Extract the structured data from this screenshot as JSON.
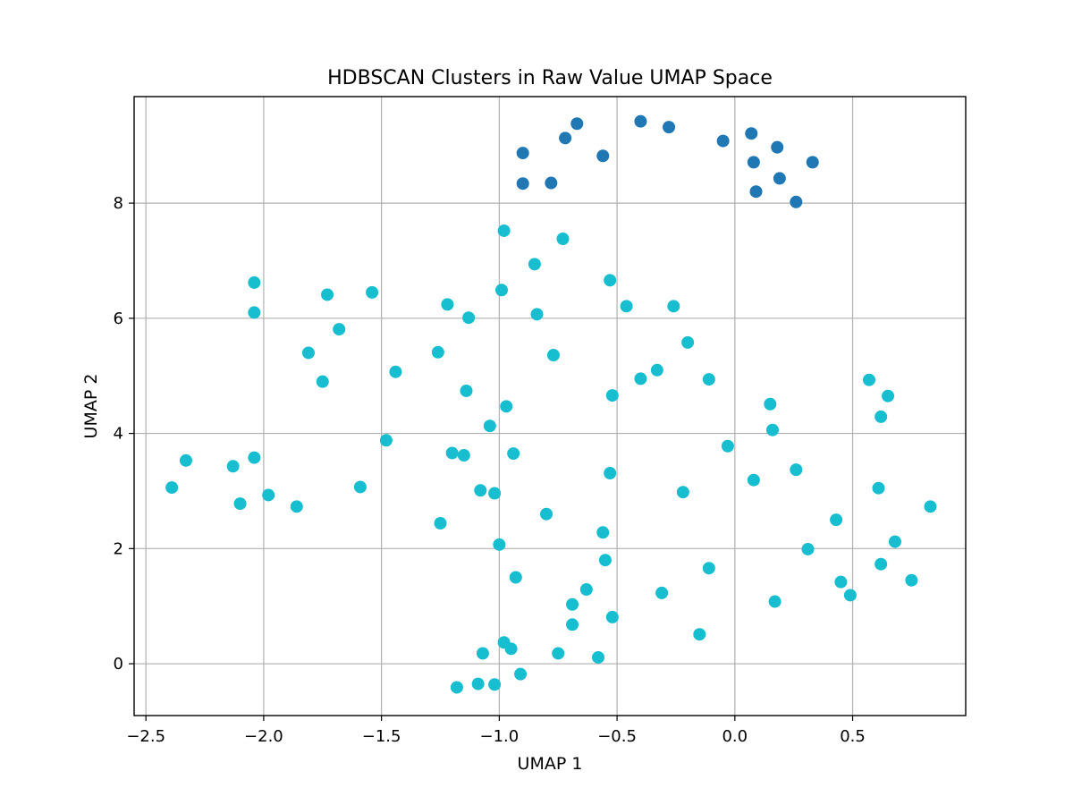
{
  "chart_data": {
    "type": "scatter",
    "title": "HDBSCAN Clusters in Raw Value UMAP Space",
    "xlabel": "UMAP 1",
    "ylabel": "UMAP 2",
    "xlim": [
      -2.55,
      0.98
    ],
    "ylim": [
      -0.9,
      9.85
    ],
    "xticks": [
      -2.5,
      -2.0,
      -1.5,
      -1.0,
      -0.5,
      0.0,
      0.5
    ],
    "xtick_labels": [
      "−2.5",
      "−2.0",
      "−1.5",
      "−1.0",
      "−0.5",
      "0.0",
      "0.5"
    ],
    "yticks": [
      0,
      2,
      4,
      6,
      8
    ],
    "ytick_labels": [
      "0",
      "2",
      "4",
      "6",
      "8"
    ],
    "grid": true,
    "series": [
      {
        "color": "#1f77b4",
        "points": [
          [
            -0.9,
            8.87
          ],
          [
            -0.9,
            8.34
          ],
          [
            -0.78,
            8.35
          ],
          [
            -0.72,
            9.13
          ],
          [
            -0.67,
            9.38
          ],
          [
            -0.56,
            8.82
          ],
          [
            -0.4,
            9.42
          ],
          [
            -0.28,
            9.32
          ],
          [
            -0.05,
            9.08
          ],
          [
            0.07,
            9.21
          ],
          [
            0.08,
            8.71
          ],
          [
            0.09,
            8.2
          ],
          [
            0.18,
            8.97
          ],
          [
            0.19,
            8.43
          ],
          [
            0.26,
            8.02
          ],
          [
            0.33,
            8.71
          ]
        ]
      },
      {
        "color": "#17becf",
        "points": [
          [
            -2.39,
            3.06
          ],
          [
            -2.33,
            3.53
          ],
          [
            -2.13,
            3.43
          ],
          [
            -2.1,
            2.78
          ],
          [
            -2.04,
            3.58
          ],
          [
            -2.04,
            6.1
          ],
          [
            -2.04,
            6.62
          ],
          [
            -1.98,
            2.93
          ],
          [
            -1.86,
            2.73
          ],
          [
            -1.81,
            5.4
          ],
          [
            -1.75,
            4.9
          ],
          [
            -1.73,
            6.41
          ],
          [
            -1.68,
            5.81
          ],
          [
            -1.59,
            3.07
          ],
          [
            -1.54,
            6.45
          ],
          [
            -1.48,
            3.88
          ],
          [
            -1.44,
            5.07
          ],
          [
            -1.26,
            5.41
          ],
          [
            -1.25,
            2.44
          ],
          [
            -1.22,
            6.24
          ],
          [
            -1.2,
            3.66
          ],
          [
            -1.15,
            3.62
          ],
          [
            -1.14,
            4.74
          ],
          [
            -1.13,
            6.01
          ],
          [
            -1.08,
            3.01
          ],
          [
            -1.07,
            0.18
          ],
          [
            -1.04,
            4.13
          ],
          [
            -1.02,
            2.96
          ],
          [
            -1.0,
            2.07
          ],
          [
            -0.99,
            6.49
          ],
          [
            -0.98,
            7.52
          ],
          [
            -0.98,
            0.37
          ],
          [
            -0.97,
            4.47
          ],
          [
            -0.95,
            0.26
          ],
          [
            -0.94,
            3.65
          ],
          [
            -0.93,
            1.5
          ],
          [
            -0.91,
            -0.18
          ],
          [
            -0.85,
            6.94
          ],
          [
            -0.84,
            6.07
          ],
          [
            -0.8,
            2.6
          ],
          [
            -0.77,
            5.36
          ],
          [
            -0.75,
            0.18
          ],
          [
            -0.73,
            7.38
          ],
          [
            -0.69,
            1.03
          ],
          [
            -0.69,
            0.68
          ],
          [
            -0.63,
            1.29
          ],
          [
            -0.58,
            0.11
          ],
          [
            -0.56,
            2.28
          ],
          [
            -0.55,
            1.8
          ],
          [
            -0.53,
            6.66
          ],
          [
            -0.53,
            3.31
          ],
          [
            -0.52,
            4.66
          ],
          [
            -0.52,
            0.81
          ],
          [
            -0.46,
            6.21
          ],
          [
            -0.4,
            4.95
          ],
          [
            -0.33,
            5.1
          ],
          [
            -0.31,
            1.23
          ],
          [
            -0.26,
            6.21
          ],
          [
            -0.22,
            2.98
          ],
          [
            -0.2,
            5.58
          ],
          [
            -0.15,
            0.51
          ],
          [
            -0.11,
            4.94
          ],
          [
            -0.11,
            1.66
          ],
          [
            -0.03,
            3.78
          ],
          [
            0.08,
            3.19
          ],
          [
            0.15,
            4.51
          ],
          [
            0.16,
            4.06
          ],
          [
            0.17,
            1.08
          ],
          [
            0.26,
            3.37
          ],
          [
            0.31,
            1.99
          ],
          [
            0.43,
            2.5
          ],
          [
            0.45,
            1.42
          ],
          [
            0.49,
            1.19
          ],
          [
            0.57,
            4.93
          ],
          [
            0.61,
            3.05
          ],
          [
            0.62,
            4.29
          ],
          [
            0.62,
            1.73
          ],
          [
            0.65,
            4.65
          ],
          [
            0.68,
            2.12
          ],
          [
            0.75,
            1.45
          ],
          [
            0.83,
            2.73
          ],
          [
            -1.09,
            -0.35
          ],
          [
            -1.02,
            -0.36
          ],
          [
            -1.18,
            -0.41
          ]
        ]
      }
    ]
  }
}
